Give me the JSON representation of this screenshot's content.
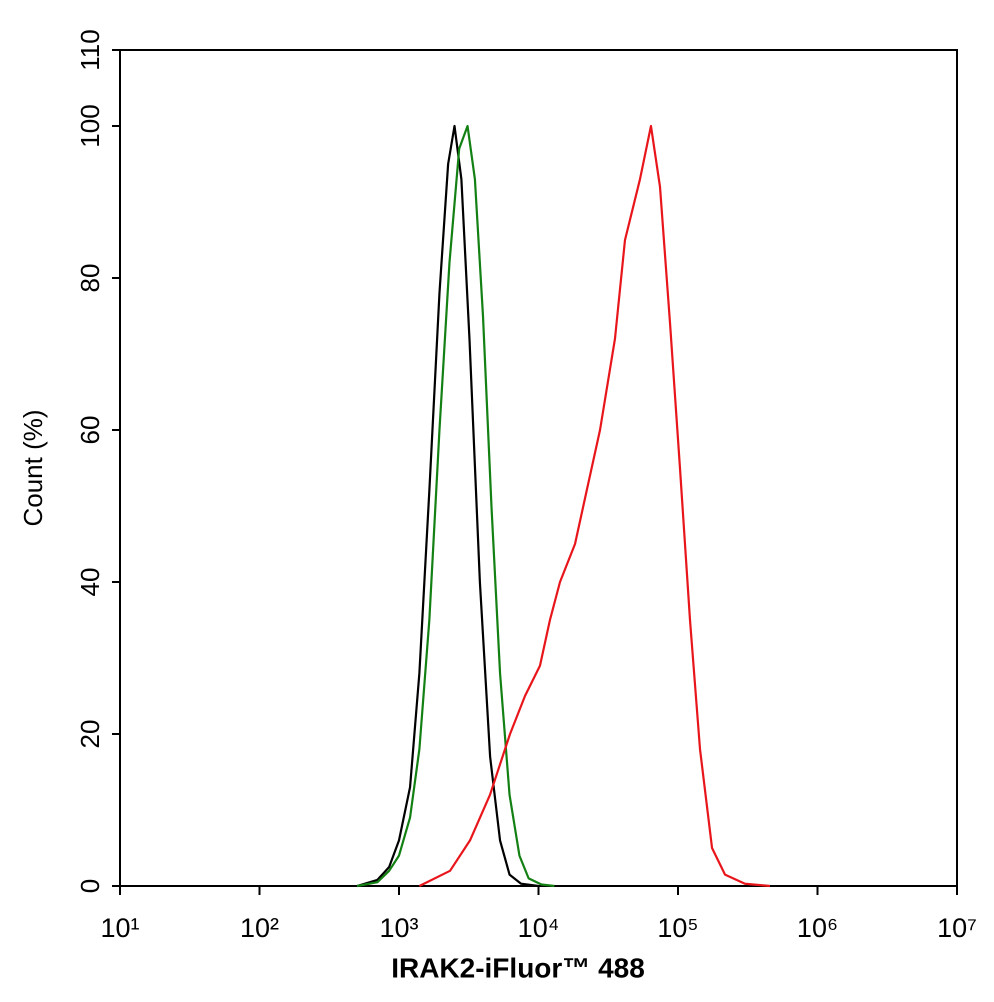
{
  "chart_data": {
    "type": "line",
    "xlabel": "IRAK2-iFluor™ 488",
    "ylabel": "Count  (%)",
    "xscale": "log",
    "xlim": [
      10,
      10000000
    ],
    "xticks": [
      {
        "value": 10,
        "label": "10¹"
      },
      {
        "value": 100,
        "label": "10²"
      },
      {
        "value": 1000,
        "label": "10³"
      },
      {
        "value": 10000,
        "label": "10⁴"
      },
      {
        "value": 100000,
        "label": "10⁵"
      },
      {
        "value": 1000000,
        "label": "10⁶"
      },
      {
        "value": 10000000,
        "label": "10⁷"
      }
    ],
    "ylim": [
      0,
      110
    ],
    "yticks": [
      0,
      20,
      40,
      60,
      80,
      100,
      110
    ],
    "series": [
      {
        "color": "#000000",
        "x": [
          500,
          700,
          850,
          1000,
          1200,
          1400,
          1650,
          1950,
          2250,
          2500,
          2800,
          3200,
          3800,
          4500,
          5300,
          6200,
          7500,
          10000
        ],
        "values": [
          0,
          0.8,
          2.5,
          6,
          13,
          28,
          52,
          78,
          95,
          100,
          93,
          72,
          40,
          17,
          6,
          1.5,
          0.3,
          0
        ]
      },
      {
        "color": "#138013",
        "x": [
          500,
          700,
          850,
          1000,
          1200,
          1400,
          1650,
          1950,
          2300,
          2700,
          3100,
          3500,
          4000,
          4600,
          5300,
          6200,
          7300,
          8500,
          10500,
          13000
        ],
        "values": [
          0,
          0.5,
          2,
          4,
          9,
          18,
          35,
          60,
          82,
          97,
          100,
          93,
          75,
          50,
          28,
          12,
          4,
          1,
          0.2,
          0
        ]
      },
      {
        "color": "#e8161b",
        "x": [
          1400,
          2322,
          3228,
          4490,
          6250,
          8000,
          10250,
          12080,
          14260,
          18270,
          21540,
          27600,
          35330,
          41690,
          53400,
          64000,
          74300,
          87700,
          103300,
          121900,
          143800,
          175400,
          217300,
          302000,
          456000
        ],
        "values": [
          0,
          2,
          6,
          12,
          20,
          25,
          29,
          35,
          40,
          45,
          51,
          60,
          72,
          85,
          93,
          100,
          92,
          74,
          55,
          35,
          18,
          5,
          1.5,
          0.3,
          0
        ]
      }
    ]
  }
}
